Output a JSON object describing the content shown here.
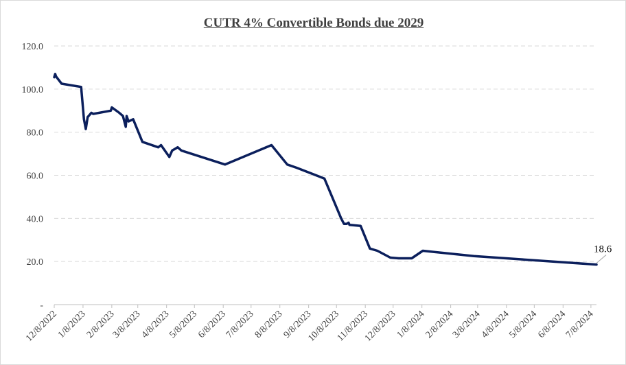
{
  "chart_data": {
    "type": "line",
    "title": "CUTR 4% Convertible Bonds due 2029",
    "xlabel": "",
    "ylabel": "",
    "ylim": [
      0,
      120
    ],
    "yticks": [
      "-",
      "20.0",
      "40.0",
      "60.0",
      "80.0",
      "100.0",
      "120.0"
    ],
    "xticks": [
      "12/8/2022",
      "1/8/2023",
      "2/8/2023",
      "3/8/2023",
      "4/8/2023",
      "5/8/2023",
      "6/8/2023",
      "7/8/2023",
      "8/8/2023",
      "9/8/2023",
      "10/8/2023",
      "11/8/2023",
      "12/8/2023",
      "1/8/2024",
      "2/8/2024",
      "3/8/2024",
      "4/8/2024",
      "5/8/2024",
      "6/8/2024",
      "7/8/2024"
    ],
    "grid": true,
    "series": [
      {
        "name": "",
        "color": "#0b1f5c",
        "points": [
          [
            "2022-12-08",
            105.5
          ],
          [
            "2022-12-09",
            107.0
          ],
          [
            "2022-12-10",
            105.8
          ],
          [
            "2022-12-16",
            102.5
          ],
          [
            "2023-01-06",
            101.0
          ],
          [
            "2023-01-09",
            86.0
          ],
          [
            "2023-01-11",
            81.5
          ],
          [
            "2023-01-13",
            87.0
          ],
          [
            "2023-01-17",
            89.0
          ],
          [
            "2023-01-19",
            88.5
          ],
          [
            "2023-02-07",
            90.0
          ],
          [
            "2023-02-08",
            91.5
          ],
          [
            "2023-02-16",
            89.0
          ],
          [
            "2023-02-20",
            87.5
          ],
          [
            "2023-02-23",
            82.5
          ],
          [
            "2023-02-24",
            87.5
          ],
          [
            "2023-02-26",
            85.0
          ],
          [
            "2023-03-03",
            86.0
          ],
          [
            "2023-03-13",
            75.5
          ],
          [
            "2023-03-30",
            73.0
          ],
          [
            "2023-04-02",
            74.0
          ],
          [
            "2023-04-11",
            68.5
          ],
          [
            "2023-04-14",
            71.5
          ],
          [
            "2023-04-20",
            73.0
          ],
          [
            "2023-04-24",
            71.5
          ],
          [
            "2023-06-10",
            65.0
          ],
          [
            "2023-07-30",
            74.0
          ],
          [
            "2023-08-16",
            65.0
          ],
          [
            "2023-08-26",
            63.5
          ],
          [
            "2023-09-25",
            58.5
          ],
          [
            "2023-10-13",
            40.0
          ],
          [
            "2023-10-16",
            37.5
          ],
          [
            "2023-10-19",
            37.5
          ],
          [
            "2023-10-21",
            38.0
          ],
          [
            "2023-10-22",
            37.0
          ],
          [
            "2023-11-03",
            36.5
          ],
          [
            "2023-11-13",
            26.0
          ],
          [
            "2023-11-21",
            25.0
          ],
          [
            "2023-12-05",
            21.8
          ],
          [
            "2023-12-14",
            21.5
          ],
          [
            "2023-12-28",
            21.5
          ],
          [
            "2024-01-09",
            25.0
          ],
          [
            "2024-03-04",
            22.5
          ],
          [
            "2024-07-14",
            18.6
          ]
        ]
      }
    ],
    "data_labels": [
      {
        "date": "2024-07-14",
        "value": 18.6,
        "text": "18.6"
      }
    ]
  }
}
